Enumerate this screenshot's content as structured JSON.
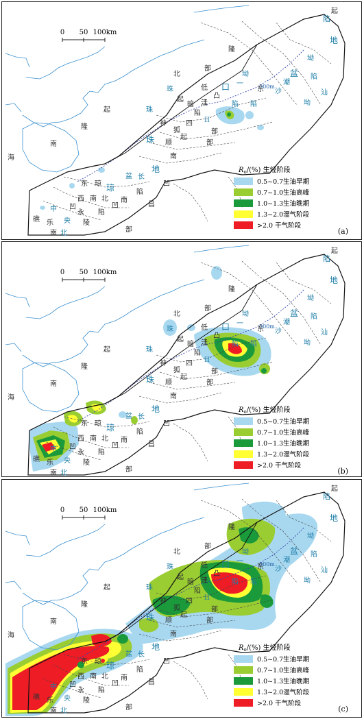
{
  "scale_bar": {
    "ticks": [
      "0",
      "50",
      "100km"
    ]
  },
  "legend": {
    "title_var": "R",
    "title_sub": "o",
    "title_rest": "/(%) 生烃阶段",
    "items": [
      {
        "range": "0.5~0.7",
        "stage": "生油早期",
        "color": "#a8d8f0"
      },
      {
        "range": "0.7~1.0",
        "stage": "生油高峰",
        "color": "#9acd32"
      },
      {
        "range": "1.0~1.3",
        "stage": "生油晚期",
        "color": "#1a9a3a"
      },
      {
        "range": "1.3~2.0",
        "stage": "湿气阶段",
        "color": "#ffff33"
      },
      {
        "range": ">2.0",
        "stage": "干气阶段",
        "color": "#ee1c25"
      }
    ]
  },
  "panels": [
    {
      "id": "a",
      "tag": "(a)",
      "level": 0
    },
    {
      "id": "b",
      "tag": "(b)",
      "level": 1
    },
    {
      "id": "c",
      "tag": "(c)",
      "level": 2
    }
  ],
  "labels": {
    "upper_basin": [
      "陷",
      "地",
      "起",
      "坳",
      "盆",
      "陷",
      "汕",
      "坳",
      "潮",
      "沙",
      "300m"
    ],
    "central": [
      "部",
      "隆",
      "东",
      "北",
      "低",
      "凸",
      "江",
      "珠",
      "口",
      "陷",
      "一",
      "坳",
      "陷",
      "珠",
      "II",
      "洼",
      "起",
      "陷",
      "顺",
      "部",
      "南",
      "四",
      "部",
      "神",
      "狐",
      "暗",
      "珠",
      "起"
    ],
    "lower_basin": [
      "地",
      "南",
      "陷",
      "东",
      "琼",
      "盆",
      "长",
      "昌",
      "凹",
      "北",
      "西",
      "凹",
      "永",
      "陵",
      "琼",
      "中",
      "央",
      "南",
      "乐",
      "凹",
      "陷",
      "北",
      "礁",
      "部"
    ],
    "coast": [
      "起",
      "南",
      "隆",
      "海",
      "南"
    ]
  }
}
